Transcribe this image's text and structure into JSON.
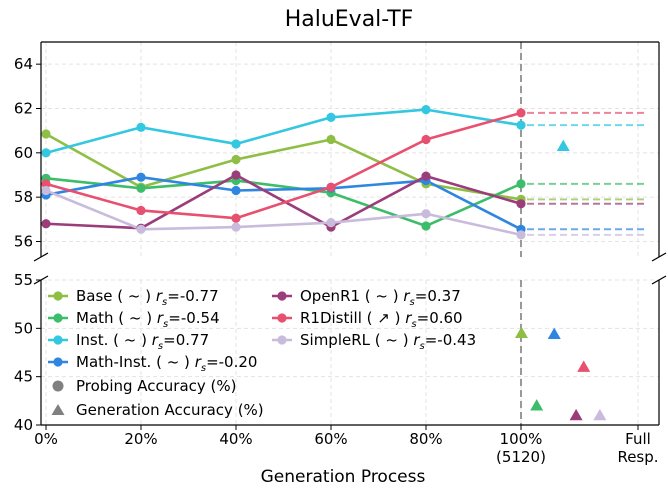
{
  "chart_data": {
    "type": "line",
    "title": "HaluEval-TF",
    "xlabel": "Generation Process",
    "categories": [
      "0%",
      "20%",
      "40%",
      "60%",
      "80%",
      "100%"
    ],
    "x_tick_labels": [
      "0%",
      "20%",
      "40%",
      "60%",
      "80%",
      "100%\n(5120)",
      "Full\nResp."
    ],
    "upper_axis": {
      "ylim": [
        55.3,
        65
      ],
      "yticks": [
        "56",
        "58",
        "60",
        "62",
        "64"
      ]
    },
    "lower_axis": {
      "ylim": [
        40,
        55
      ],
      "yticks": [
        "40",
        "45",
        "50",
        "55"
      ]
    },
    "grid": true,
    "legend_position": "lower-left",
    "series": [
      {
        "name": "Base",
        "trend": "~",
        "rs": "-0.77",
        "color": "#8fbe45",
        "probing": [
          60.85,
          58.45,
          59.7,
          60.6,
          58.6,
          57.9
        ],
        "generation": 49.5,
        "gen_x": 100.1
      },
      {
        "name": "Math",
        "trend": "~",
        "rs": "-0.54",
        "color": "#3dbd6a",
        "probing": [
          58.85,
          58.4,
          58.75,
          58.2,
          56.7,
          58.6
        ],
        "generation": 42.0,
        "gen_x": 103.3
      },
      {
        "name": "Inst.",
        "trend": "~",
        "rs": "0.77",
        "color": "#33c7e0",
        "probing": [
          60.0,
          61.15,
          60.4,
          61.6,
          61.95,
          61.25
        ],
        "generation": 60.3,
        "gen_x": 108.9
      },
      {
        "name": "Math-Inst.",
        "trend": "~",
        "rs": "-0.20",
        "color": "#2f86e0",
        "probing": [
          58.1,
          58.9,
          58.3,
          58.4,
          58.75,
          56.55
        ],
        "generation": 49.4,
        "gen_x": 107.0
      },
      {
        "name": "OpenR1",
        "trend": "~",
        "rs": "0.37",
        "color": "#9a3d7a",
        "probing": [
          56.8,
          56.6,
          59.0,
          56.65,
          58.95,
          57.7
        ],
        "generation": 41.0,
        "gen_x": 111.6
      },
      {
        "name": "R1Distill",
        "trend": "↗",
        "rs": "0.60",
        "color": "#e8506f",
        "probing": [
          58.6,
          57.4,
          57.05,
          58.45,
          60.6,
          61.8
        ],
        "generation": 46.0,
        "gen_x": 113.2
      },
      {
        "name": "SimpleRL",
        "trend": "~",
        "rs": "-0.43",
        "color": "#c9bbdc",
        "probing": [
          58.3,
          56.55,
          56.65,
          56.85,
          57.25,
          56.3
        ],
        "generation": 41.0,
        "gen_x": 116.6
      }
    ],
    "marker_legend": [
      {
        "label": "Probing Accuracy (%)",
        "marker": "circle",
        "color": "#808080"
      },
      {
        "label": "Generation Accuracy (%)",
        "marker": "triangle",
        "color": "#808080"
      }
    ]
  }
}
